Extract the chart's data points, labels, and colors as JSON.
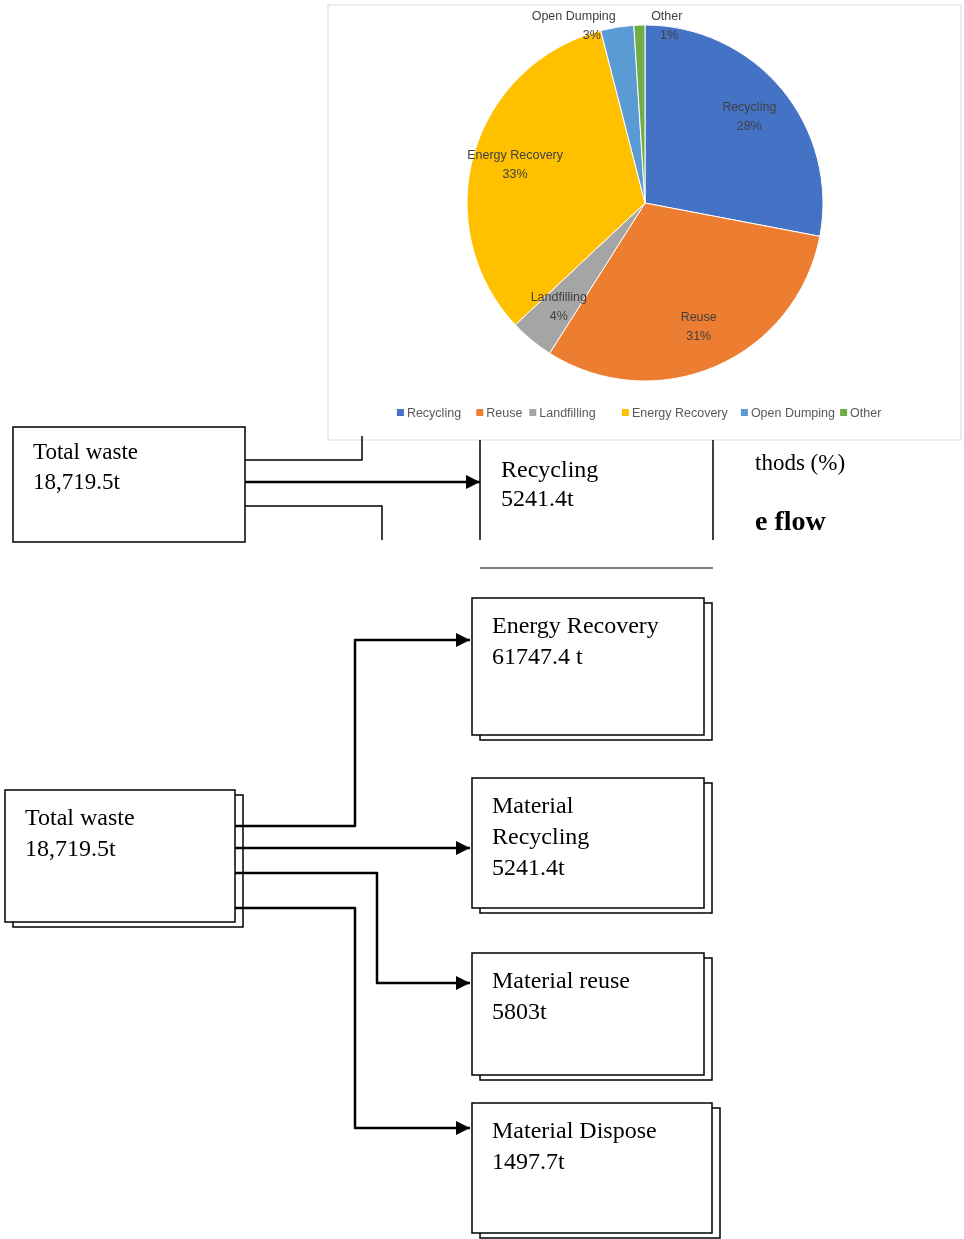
{
  "chart_data": [
    {
      "type": "pie",
      "categories": [
        "Recycling",
        "Reuse",
        "Landfilling",
        "Energy Recovery",
        "Open Dumping",
        "Other"
      ],
      "values": [
        28,
        31,
        4,
        33,
        3,
        1
      ],
      "colors": [
        "#4472c4",
        "#ed7d31",
        "#a5a5a5",
        "#ffc000",
        "#5b9bd5",
        "#70ad47"
      ],
      "value_labels": [
        "28%",
        "31%",
        "4%",
        "33%",
        "3%",
        "1%"
      ],
      "legend": "bottom"
    },
    {
      "type": "other",
      "annotations": [
        "Total waste\n18,719.5t",
        "Recycling\n5241.4t",
        "thods (%)",
        "e flow"
      ]
    },
    {
      "type": "other",
      "categories": [
        "Total waste",
        "Energy Recovery",
        "Material\nRecycling",
        "Material reuse",
        "Material Dispose"
      ],
      "values": [
        18719.5,
        61747.4,
        5241.4,
        5803,
        1497.7
      ],
      "value_labels": [
        "18,719.5t",
        "61747.4 t",
        "5241.4t",
        "5803t",
        "1497.7t"
      ]
    }
  ]
}
